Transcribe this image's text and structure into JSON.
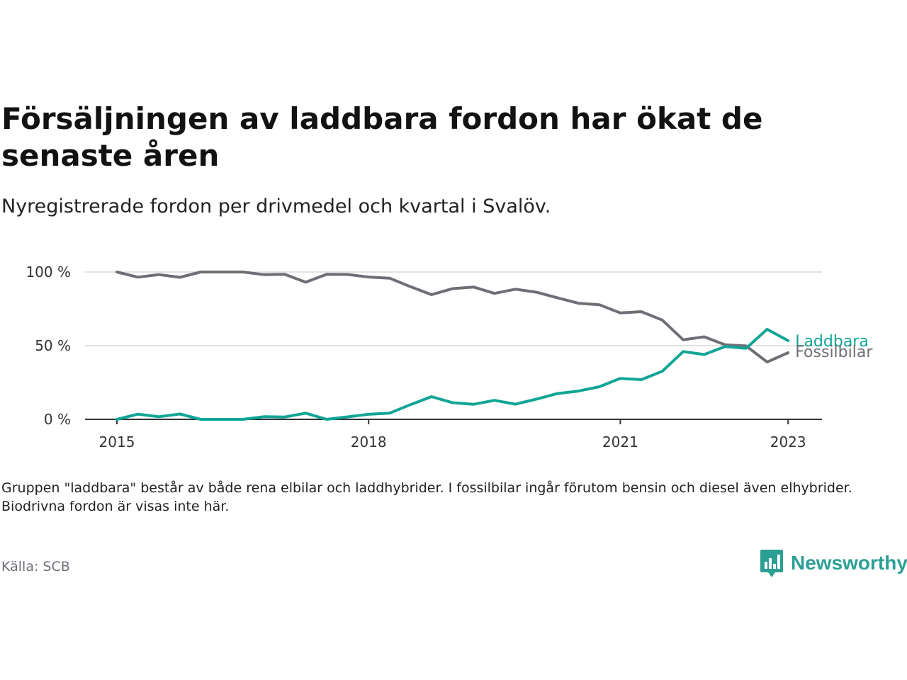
{
  "title": "Försäljningen av laddbara fordon har ökat de senaste åren",
  "subtitle": "Nyregistrerade fordon per drivmedel och kvartal i Svalöv.",
  "note": "Gruppen \"laddbara\" består av både rena elbilar och laddhybrider. I fossilbilar ingår förutom bensin och diesel även elhybrider. Biodrivna fordon är visas inte här.",
  "source": "Källa: SCB",
  "brand": "Newsworthy",
  "colors": {
    "laddbara": "#10a596",
    "fossilbilar": "#6e6e76",
    "grid": "#d9d9d9",
    "axis": "#333333"
  },
  "chart_data": {
    "type": "line",
    "x": [
      "2015Q1",
      "2015Q2",
      "2015Q3",
      "2015Q4",
      "2016Q1",
      "2016Q2",
      "2016Q3",
      "2016Q4",
      "2017Q1",
      "2017Q2",
      "2017Q3",
      "2017Q4",
      "2018Q1",
      "2018Q2",
      "2018Q3",
      "2018Q4",
      "2019Q1",
      "2019Q2",
      "2019Q3",
      "2019Q4",
      "2020Q1",
      "2020Q2",
      "2020Q3",
      "2020Q4",
      "2021Q1",
      "2021Q2",
      "2021Q3",
      "2021Q4",
      "2022Q1",
      "2022Q2",
      "2022Q3",
      "2022Q4",
      "2023Q1"
    ],
    "x_ticks": [
      "2015",
      "2018",
      "2021",
      "2023"
    ],
    "y_ticks": [
      "0 %",
      "50 %",
      "100 %"
    ],
    "ylim": [
      0,
      100
    ],
    "series": [
      {
        "name": "Laddbara",
        "values": [
          0,
          3.5,
          1.8,
          3.6,
          0,
          0,
          0,
          1.8,
          1.6,
          4.2,
          0,
          1.7,
          3.4,
          4.2,
          10,
          15.4,
          11.3,
          10.2,
          12.9,
          10.3,
          13.7,
          17.5,
          19.2,
          22.1,
          27.8,
          26.9,
          32.6,
          46,
          44,
          49.4,
          48.2,
          61.1,
          53.4
        ]
      },
      {
        "name": "Fossilbilar",
        "values": [
          100,
          96.5,
          98.2,
          96.4,
          100,
          100,
          100,
          98.2,
          98.4,
          93.1,
          98.4,
          98.3,
          96.6,
          95.8,
          90,
          84.6,
          88.7,
          89.8,
          85.5,
          88.3,
          86.3,
          82.5,
          78.8,
          77.8,
          72.2,
          73.1,
          67.4,
          54,
          56,
          50.6,
          49.8,
          38.9,
          45.2
        ]
      }
    ]
  }
}
